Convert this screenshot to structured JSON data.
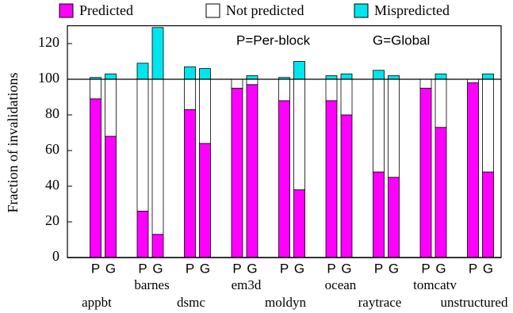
{
  "chart_data": {
    "type": "grouped-stacked-bar",
    "ylabel": "Fraction of invalidations",
    "annotations": [
      "P=Per-block",
      "G=Global"
    ],
    "categories": [
      "appbt",
      "barnes",
      "dsmc",
      "em3d",
      "moldyn",
      "ocean",
      "raytrace",
      "tomcatv",
      "unstructured"
    ],
    "bar_labels": [
      "P",
      "G"
    ],
    "series": [
      {
        "name": "Predicted",
        "color": "#ff00ff",
        "values": [
          [
            89,
            68
          ],
          [
            26,
            13
          ],
          [
            83,
            64
          ],
          [
            95,
            97
          ],
          [
            88,
            38
          ],
          [
            88,
            80
          ],
          [
            48,
            45
          ],
          [
            95,
            73
          ],
          [
            98,
            48
          ]
        ]
      },
      {
        "name": "Not predicted",
        "color": "#ffffff",
        "values": [
          [
            11,
            32
          ],
          [
            74,
            87
          ],
          [
            17,
            36
          ],
          [
            5,
            3
          ],
          [
            12,
            62
          ],
          [
            12,
            20
          ],
          [
            52,
            55
          ],
          [
            5,
            27
          ],
          [
            2,
            52
          ]
        ]
      },
      {
        "name": "Mispredicted",
        "color": "#00e5ee",
        "values": [
          [
            1,
            3
          ],
          [
            9,
            29
          ],
          [
            7,
            6
          ],
          [
            0,
            2
          ],
          [
            1,
            10
          ],
          [
            2,
            3
          ],
          [
            5,
            2
          ],
          [
            0,
            3
          ],
          [
            0,
            3
          ]
        ]
      }
    ],
    "reference_line": 100,
    "ylim": [
      0,
      130
    ],
    "yticks": [
      0,
      20,
      40,
      60,
      80,
      100,
      120
    ]
  }
}
